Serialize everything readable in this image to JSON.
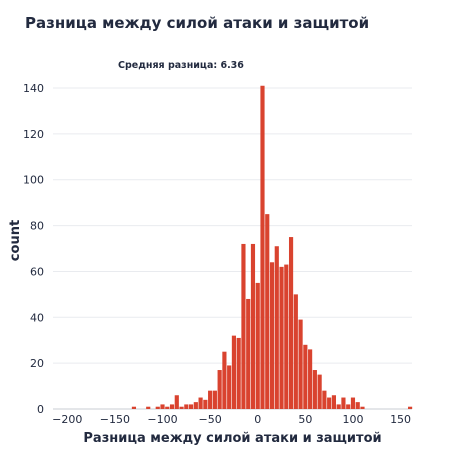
{
  "chart_data": {
    "type": "histogram",
    "title": "Разница между силой атаки и защитой",
    "xlabel": "Разница между силой атаки и защитой",
    "ylabel": "count",
    "annotation": "Средняя разница: 6.36",
    "xlim": [
      -215,
      162
    ],
    "ylim": [
      0,
      147
    ],
    "bin_width": 5,
    "x_ticks": [
      -200,
      -150,
      -100,
      -50,
      0,
      50,
      100,
      150
    ],
    "x_tick_labels": [
      "−200",
      "−150",
      "−100",
      "−50",
      "0",
      "50",
      "100",
      "150"
    ],
    "y_ticks": [
      0,
      20,
      40,
      60,
      80,
      100,
      120,
      140
    ],
    "gridlines": true,
    "bar_color": "#d9432f",
    "bins": [
      {
        "x": -130,
        "count": 1
      },
      {
        "x": -115,
        "count": 1
      },
      {
        "x": -105,
        "count": 1
      },
      {
        "x": -100,
        "count": 2
      },
      {
        "x": -95,
        "count": 1
      },
      {
        "x": -90,
        "count": 2
      },
      {
        "x": -85,
        "count": 6
      },
      {
        "x": -80,
        "count": 1
      },
      {
        "x": -75,
        "count": 2
      },
      {
        "x": -70,
        "count": 2
      },
      {
        "x": -65,
        "count": 3
      },
      {
        "x": -60,
        "count": 5
      },
      {
        "x": -55,
        "count": 4
      },
      {
        "x": -50,
        "count": 8
      },
      {
        "x": -45,
        "count": 8
      },
      {
        "x": -40,
        "count": 17
      },
      {
        "x": -35,
        "count": 25
      },
      {
        "x": -30,
        "count": 19
      },
      {
        "x": -25,
        "count": 32
      },
      {
        "x": -20,
        "count": 31
      },
      {
        "x": -15,
        "count": 72
      },
      {
        "x": -10,
        "count": 48
      },
      {
        "x": -5,
        "count": 72
      },
      {
        "x": 0,
        "count": 55
      },
      {
        "x": 5,
        "count": 141
      },
      {
        "x": 10,
        "count": 85
      },
      {
        "x": 15,
        "count": 64
      },
      {
        "x": 20,
        "count": 71
      },
      {
        "x": 25,
        "count": 62
      },
      {
        "x": 30,
        "count": 63
      },
      {
        "x": 35,
        "count": 75
      },
      {
        "x": 40,
        "count": 50
      },
      {
        "x": 45,
        "count": 39
      },
      {
        "x": 50,
        "count": 28
      },
      {
        "x": 55,
        "count": 26
      },
      {
        "x": 60,
        "count": 17
      },
      {
        "x": 65,
        "count": 15
      },
      {
        "x": 70,
        "count": 8
      },
      {
        "x": 75,
        "count": 5
      },
      {
        "x": 80,
        "count": 6
      },
      {
        "x": 85,
        "count": 2
      },
      {
        "x": 90,
        "count": 5
      },
      {
        "x": 95,
        "count": 2
      },
      {
        "x": 100,
        "count": 5
      },
      {
        "x": 105,
        "count": 3
      },
      {
        "x": 110,
        "count": 1
      },
      {
        "x": 160,
        "count": 1
      }
    ]
  }
}
